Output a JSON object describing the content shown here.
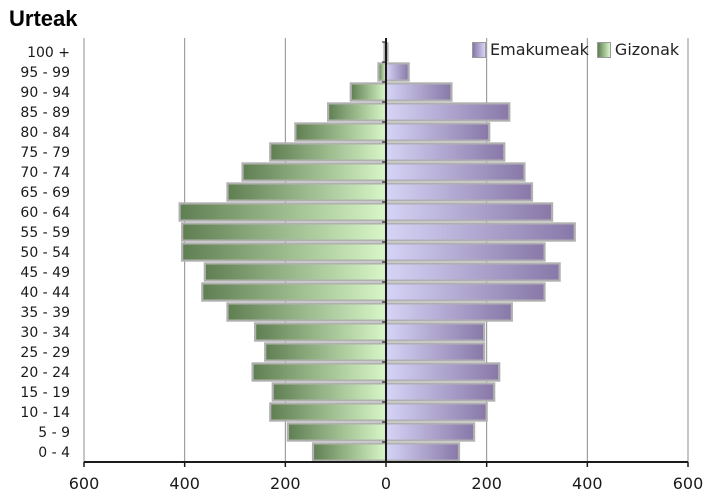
{
  "chart_data": {
    "type": "bar",
    "title": "Urteak",
    "categories": [
      "100 +",
      "95 - 99",
      "90 - 94",
      "85 - 89",
      "80 - 84",
      "75 - 79",
      "70 - 74",
      "65 - 69",
      "60 - 64",
      "55 - 59",
      "50 - 54",
      "45 - 49",
      "40 - 44",
      "35 - 39",
      "30 - 34",
      "25 - 29",
      "20 - 24",
      "15 - 19",
      "10 - 14",
      "5 - 9",
      "0 - 4"
    ],
    "series": [
      {
        "name": "Emakumeak",
        "values": [
          3,
          45,
          130,
          245,
          205,
          235,
          275,
          290,
          330,
          375,
          315,
          345,
          315,
          250,
          195,
          195,
          225,
          215,
          200,
          175,
          145
        ]
      },
      {
        "name": "Gizonak",
        "values": [
          3,
          15,
          70,
          115,
          180,
          230,
          285,
          315,
          410,
          405,
          405,
          360,
          365,
          315,
          260,
          240,
          265,
          225,
          230,
          195,
          145
        ]
      }
    ],
    "xaxis_ticks": [
      "600",
      "400",
      "200",
      "0",
      "200",
      "400",
      "600"
    ],
    "xlim": [
      -600,
      600
    ],
    "grid": "vertical",
    "legend_position": "top-right",
    "colors": {
      "female_dark": "#8878a8",
      "female_light": "#d6d4f6",
      "male_dark": "#5f7f52",
      "male_light": "#d8f6c8",
      "bar_border": "#b0b0b0"
    }
  }
}
